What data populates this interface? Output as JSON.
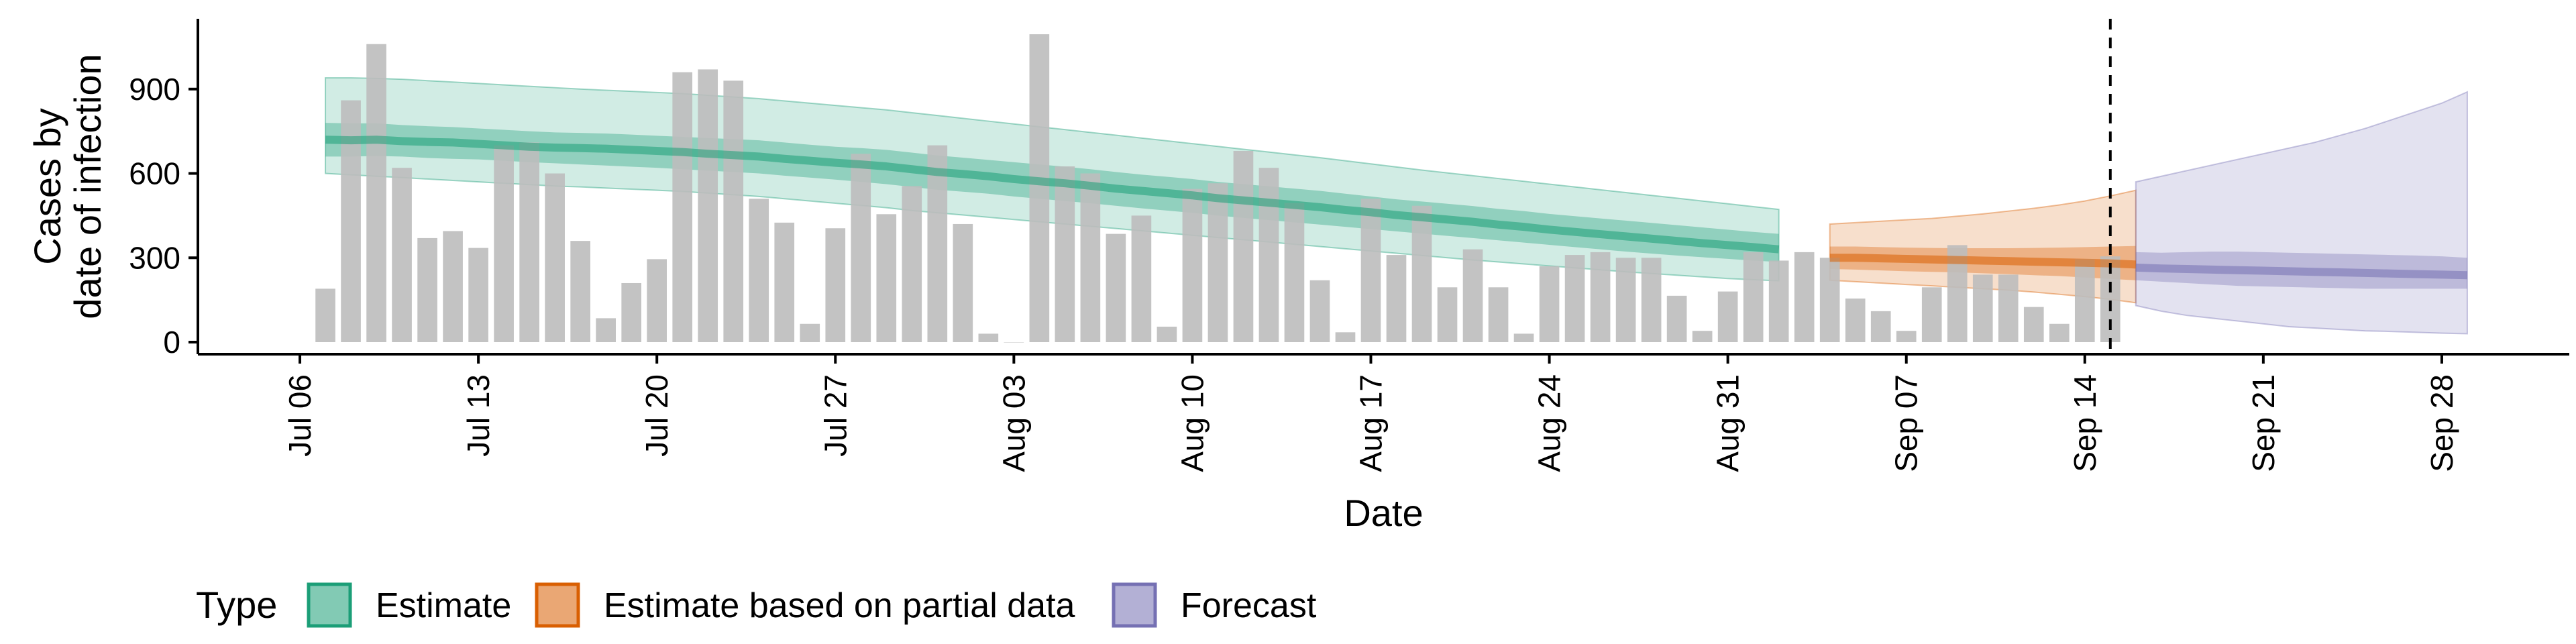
{
  "chart_data": {
    "type": "bar",
    "xlabel": "Date",
    "ylabel": [
      "Cases by",
      "date of infection"
    ],
    "ylim": [
      0,
      1150
    ],
    "yticks": [
      0,
      300,
      600,
      900
    ],
    "x_ticks": [
      "Jul 06",
      "Jul 13",
      "Jul 20",
      "Jul 27",
      "Aug 03",
      "Aug 10",
      "Aug 17",
      "Aug 24",
      "Aug 31",
      "Sep 07",
      "Sep 14",
      "Sep 21",
      "Sep 28"
    ],
    "x_tick_dates": [
      "2020-07-06",
      "2020-07-13",
      "2020-07-20",
      "2020-07-27",
      "2020-08-03",
      "2020-08-10",
      "2020-08-17",
      "2020-08-24",
      "2020-08-31",
      "2020-09-07",
      "2020-09-14",
      "2020-09-21",
      "2020-09-28"
    ],
    "x_range": [
      "2020-07-02",
      "2020-10-03"
    ],
    "vline_date": "2020-09-15",
    "grid": false,
    "legend": {
      "title": "Type",
      "placement": "bottom",
      "entries": [
        {
          "label": "Estimate",
          "color": "#1b9e77"
        },
        {
          "label": "Estimate based on partial data",
          "color": "#d95f02"
        },
        {
          "label": "Forecast",
          "color": "#7570b3"
        }
      ]
    },
    "bars": {
      "start_date": "2020-07-07",
      "color": "#bdbdbd",
      "values": [
        190,
        860,
        1060,
        620,
        370,
        395,
        335,
        700,
        710,
        600,
        360,
        85,
        210,
        295,
        960,
        970,
        930,
        510,
        425,
        65,
        405,
        670,
        455,
        555,
        700,
        420,
        30,
        0,
        1095,
        625,
        600,
        385,
        450,
        55,
        545,
        565,
        680,
        620,
        495,
        220,
        35,
        510,
        310,
        485,
        195,
        330,
        195,
        30,
        270,
        310,
        320,
        300,
        300,
        165,
        40,
        180,
        320,
        290,
        320,
        300,
        155,
        110,
        40,
        195,
        345,
        240,
        240,
        125,
        65,
        295,
        305
      ]
    },
    "series": [
      {
        "name": "Estimate",
        "start_date": "2020-07-07",
        "median": [
          720,
          718,
          720,
          715,
          712,
          710,
          705,
          700,
          695,
          692,
          690,
          688,
          684,
          680,
          676,
          670,
          665,
          660,
          652,
          645,
          638,
          632,
          625,
          615,
          605,
          598,
          590,
          580,
          572,
          565,
          556,
          546,
          538,
          530,
          522,
          512,
          504,
          496,
          488,
          480,
          470,
          462,
          452,
          444,
          436,
          428,
          418,
          410,
          400,
          392,
          384,
          376,
          368,
          360,
          352,
          345,
          338,
          330
        ],
        "inner_lower": [
          660,
          660,
          662,
          660,
          655,
          652,
          650,
          645,
          640,
          636,
          632,
          628,
          624,
          620,
          615,
          610,
          605,
          600,
          592,
          585,
          578,
          570,
          562,
          552,
          542,
          535,
          528,
          518,
          510,
          502,
          494,
          485,
          476,
          468,
          460,
          450,
          442,
          434,
          426,
          418,
          410,
          402,
          394,
          386,
          378,
          370,
          362,
          354,
          346,
          338,
          330,
          322,
          315,
          308,
          302,
          296,
          290,
          285
        ],
        "inner_upper": [
          780,
          778,
          778,
          772,
          768,
          765,
          760,
          755,
          750,
          746,
          744,
          742,
          738,
          734,
          730,
          726,
          722,
          718,
          710,
          702,
          695,
          690,
          684,
          674,
          664,
          656,
          648,
          640,
          632,
          624,
          615,
          605,
          596,
          588,
          580,
          570,
          562,
          554,
          546,
          538,
          528,
          518,
          508,
          500,
          492,
          484,
          474,
          466,
          456,
          448,
          440,
          432,
          424,
          416,
          408,
          400,
          392,
          385
        ],
        "outer_lower": [
          600,
          595,
          590,
          585,
          580,
          575,
          570,
          565,
          560,
          555,
          552,
          548,
          544,
          540,
          536,
          530,
          524,
          518,
          510,
          502,
          494,
          486,
          478,
          468,
          460,
          452,
          444,
          436,
          428,
          420,
          412,
          404,
          396,
          388,
          380,
          372,
          364,
          356,
          348,
          340,
          332,
          324,
          316,
          308,
          300,
          292,
          285,
          278,
          271,
          264,
          257,
          250,
          244,
          238,
          232,
          226,
          222,
          218
        ],
        "outer_upper": [
          940,
          940,
          938,
          935,
          930,
          925,
          920,
          915,
          910,
          905,
          900,
          896,
          892,
          888,
          884,
          878,
          872,
          866,
          858,
          850,
          842,
          834,
          826,
          816,
          806,
          796,
          786,
          776,
          766,
          756,
          746,
          736,
          726,
          716,
          706,
          696,
          686,
          676,
          666,
          656,
          645,
          634,
          623,
          612,
          602,
          592,
          582,
          572,
          562,
          552,
          542,
          532,
          522,
          512,
          502,
          492,
          482,
          472
        ]
      },
      {
        "name": "Estimate based on partial data",
        "start_date": "2020-09-04",
        "median": [
          300,
          300,
          298,
          296,
          294,
          292,
          290,
          288,
          286,
          284,
          282,
          280,
          276
        ],
        "inner_lower": [
          260,
          258,
          255,
          252,
          250,
          248,
          245,
          242,
          238,
          235,
          230,
          225,
          220
        ],
        "inner_upper": [
          340,
          340,
          338,
          336,
          335,
          334,
          334,
          334,
          335,
          336,
          338,
          340,
          342
        ],
        "outer_lower": [
          220,
          215,
          210,
          205,
          200,
          195,
          190,
          185,
          178,
          170,
          162,
          152,
          140
        ],
        "outer_upper": [
          420,
          425,
          430,
          435,
          440,
          448,
          456,
          466,
          476,
          488,
          502,
          520,
          540
        ]
      },
      {
        "name": "Forecast",
        "start_date": "2020-09-16",
        "median": [
          265,
          262,
          260,
          258,
          256,
          254,
          252,
          250,
          248,
          246,
          244,
          242,
          240,
          238
        ],
        "inner_lower": [
          220,
          215,
          210,
          205,
          200,
          198,
          196,
          194,
          192,
          190,
          190,
          190,
          190,
          190
        ],
        "inner_upper": [
          320,
          318,
          320,
          322,
          322,
          320,
          318,
          316,
          314,
          312,
          310,
          308,
          305,
          300
        ],
        "outer_lower": [
          130,
          110,
          95,
          85,
          75,
          65,
          55,
          50,
          45,
          40,
          38,
          35,
          32,
          30
        ],
        "outer_upper": [
          570,
          590,
          610,
          630,
          650,
          670,
          690,
          710,
          735,
          760,
          790,
          820,
          850,
          890
        ]
      }
    ]
  }
}
